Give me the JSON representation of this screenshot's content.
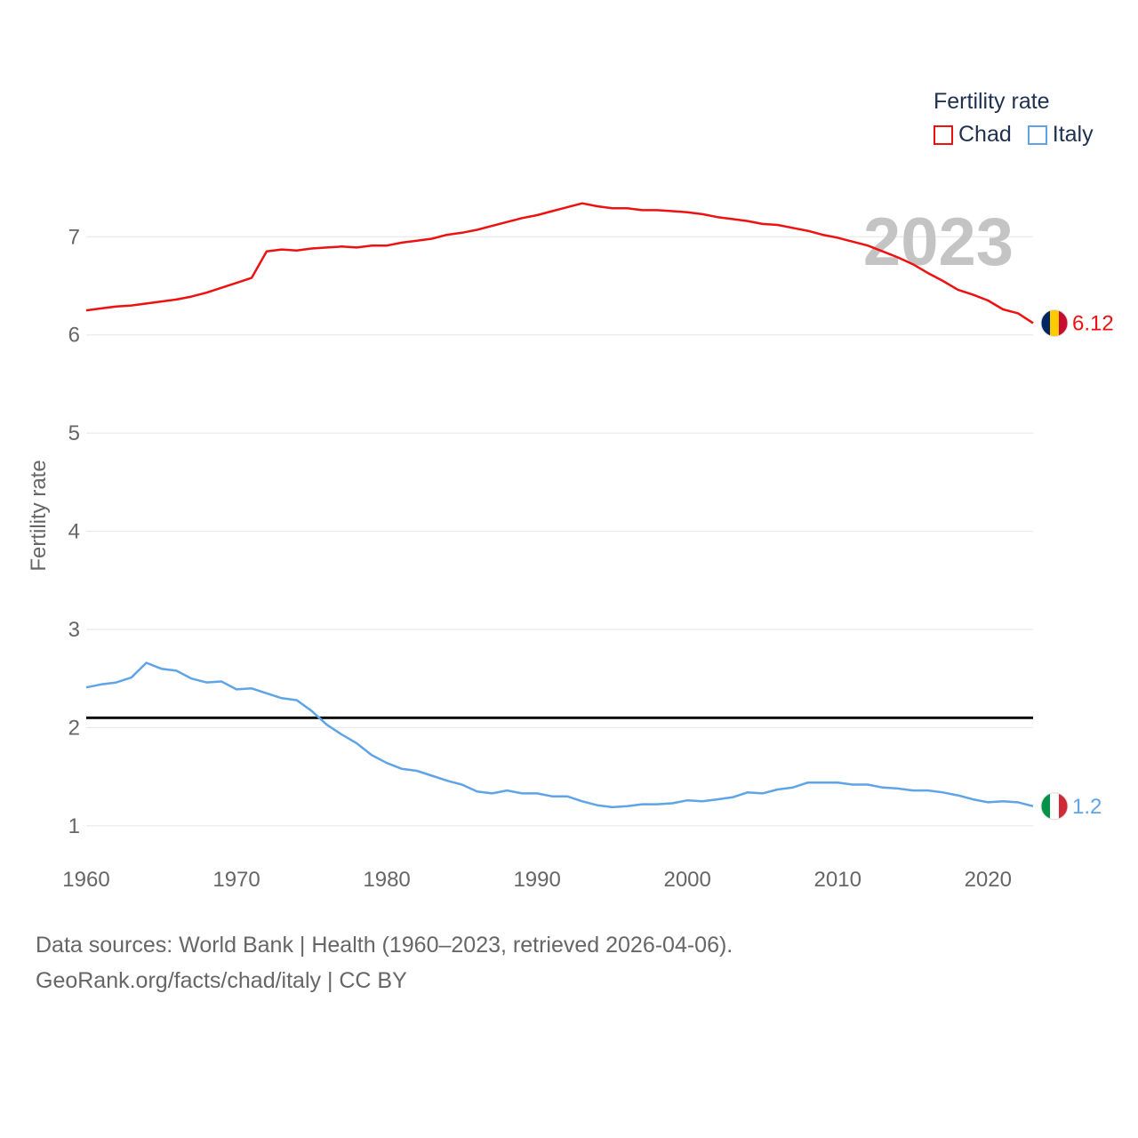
{
  "chart_data": {
    "type": "line",
    "title": "Fertility rate",
    "year_label": "2023",
    "ylabel": "Fertility rate",
    "xlabel": "",
    "xlim": [
      1960,
      2023
    ],
    "ylim": [
      0.7,
      7.6
    ],
    "x_ticks": [
      1960,
      1970,
      1980,
      1990,
      2000,
      2010,
      2020
    ],
    "y_ticks": [
      1,
      2,
      3,
      4,
      5,
      6,
      7
    ],
    "reference_line": 2.1,
    "x": [
      1960,
      1961,
      1962,
      1963,
      1964,
      1965,
      1966,
      1967,
      1968,
      1969,
      1970,
      1971,
      1972,
      1973,
      1974,
      1975,
      1976,
      1977,
      1978,
      1979,
      1980,
      1981,
      1982,
      1983,
      1984,
      1985,
      1986,
      1987,
      1988,
      1989,
      1990,
      1991,
      1992,
      1993,
      1994,
      1995,
      1996,
      1997,
      1998,
      1999,
      2000,
      2001,
      2002,
      2003,
      2004,
      2005,
      2006,
      2007,
      2008,
      2009,
      2010,
      2011,
      2012,
      2013,
      2014,
      2015,
      2016,
      2017,
      2018,
      2019,
      2020,
      2021,
      2022,
      2023
    ],
    "series": [
      {
        "name": "Chad",
        "color": "#ee1111",
        "end_label": "6.12",
        "values": [
          6.25,
          6.27,
          6.29,
          6.3,
          6.32,
          6.34,
          6.36,
          6.39,
          6.43,
          6.48,
          6.53,
          6.58,
          6.85,
          6.87,
          6.86,
          6.88,
          6.89,
          6.9,
          6.89,
          6.91,
          6.91,
          6.94,
          6.96,
          6.98,
          7.02,
          7.04,
          7.07,
          7.11,
          7.15,
          7.19,
          7.22,
          7.26,
          7.3,
          7.34,
          7.31,
          7.29,
          7.29,
          7.27,
          7.27,
          7.26,
          7.25,
          7.23,
          7.2,
          7.18,
          7.16,
          7.13,
          7.12,
          7.09,
          7.06,
          7.02,
          6.99,
          6.95,
          6.91,
          6.85,
          6.79,
          6.72,
          6.63,
          6.55,
          6.46,
          6.41,
          6.35,
          6.26,
          6.22,
          6.12
        ]
      },
      {
        "name": "Italy",
        "color": "#5ea4e6",
        "end_label": "1.2",
        "values": [
          2.41,
          2.44,
          2.46,
          2.51,
          2.66,
          2.6,
          2.58,
          2.5,
          2.46,
          2.47,
          2.39,
          2.4,
          2.35,
          2.3,
          2.28,
          2.17,
          2.03,
          1.93,
          1.84,
          1.72,
          1.64,
          1.58,
          1.56,
          1.51,
          1.46,
          1.42,
          1.35,
          1.33,
          1.36,
          1.33,
          1.33,
          1.3,
          1.3,
          1.25,
          1.21,
          1.19,
          1.2,
          1.22,
          1.22,
          1.23,
          1.26,
          1.25,
          1.27,
          1.29,
          1.34,
          1.33,
          1.37,
          1.39,
          1.44,
          1.44,
          1.44,
          1.42,
          1.42,
          1.39,
          1.38,
          1.36,
          1.36,
          1.34,
          1.31,
          1.27,
          1.24,
          1.25,
          1.24,
          1.2
        ]
      }
    ]
  },
  "footer": {
    "line1": "Data sources: World Bank | Health (1960–2023, retrieved 2026-04-06).",
    "line2": "GeoRank.org/facts/chad/italy | CC BY"
  }
}
